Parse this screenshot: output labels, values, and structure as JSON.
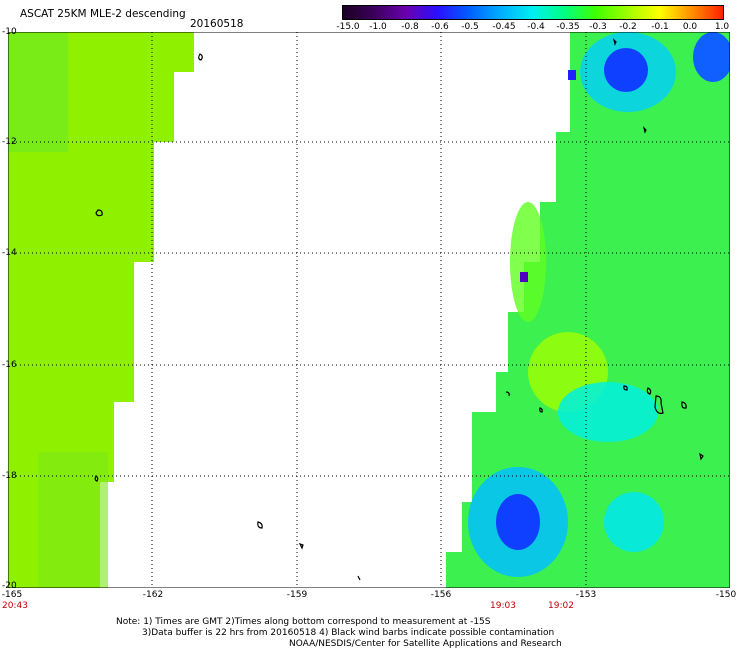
{
  "header": {
    "title": "ASCAT 25KM MLE-2 descending",
    "date": "20160518"
  },
  "colorbar": {
    "labels": [
      "-15.0",
      "-1.0",
      "-0.8",
      "-0.6",
      "-0.5",
      "-0.45",
      "-0.4",
      "-0.35",
      "-0.3",
      "-0.2",
      "-0.1",
      "0.0",
      "1.0"
    ],
    "colors": [
      "#1a0022",
      "#3c005c",
      "#6a00b0",
      "#2a10ff",
      "#0060ff",
      "#00b0ff",
      "#00f0f0",
      "#00ff80",
      "#40ff00",
      "#a0ff00",
      "#ffff00",
      "#ff9000",
      "#ff2000"
    ]
  },
  "map": {
    "lat_labels": [
      "-10",
      "-12",
      "-14",
      "-16",
      "-18",
      "-20"
    ],
    "lon_labels": [
      "-165",
      "-162",
      "-159",
      "-156",
      "-153",
      "-150"
    ],
    "times": [
      "20:43",
      "19:03",
      "19:02"
    ]
  },
  "footer": {
    "line1": "Note: 1) Times are GMT 2)Times along bottom correspond to measurement at -15S",
    "line2": "3)Data buffer is 22 hrs from 20160518 4) Black wind barbs indicate possible contamination",
    "line3": "NOAA/NESDIS/Center for Satellite Applications and Research"
  }
}
